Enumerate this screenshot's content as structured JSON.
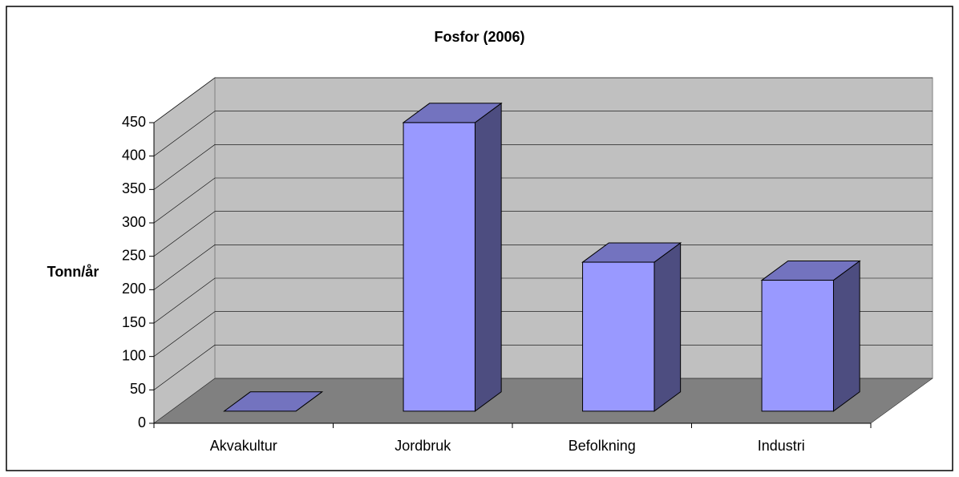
{
  "chart_data": {
    "type": "bar3d",
    "title": "Fosfor (2006)",
    "y_label": "Tonn/år",
    "categories": [
      "Akvakultur",
      "Jordbruk",
      "Befolkning",
      "Industri"
    ],
    "values": [
      0,
      432,
      223,
      196
    ],
    "color": "#9999ff",
    "ylim": [
      0,
      450
    ],
    "yticks": [
      0,
      50,
      100,
      150,
      200,
      250,
      300,
      350,
      400,
      450
    ],
    "grid": true
  }
}
